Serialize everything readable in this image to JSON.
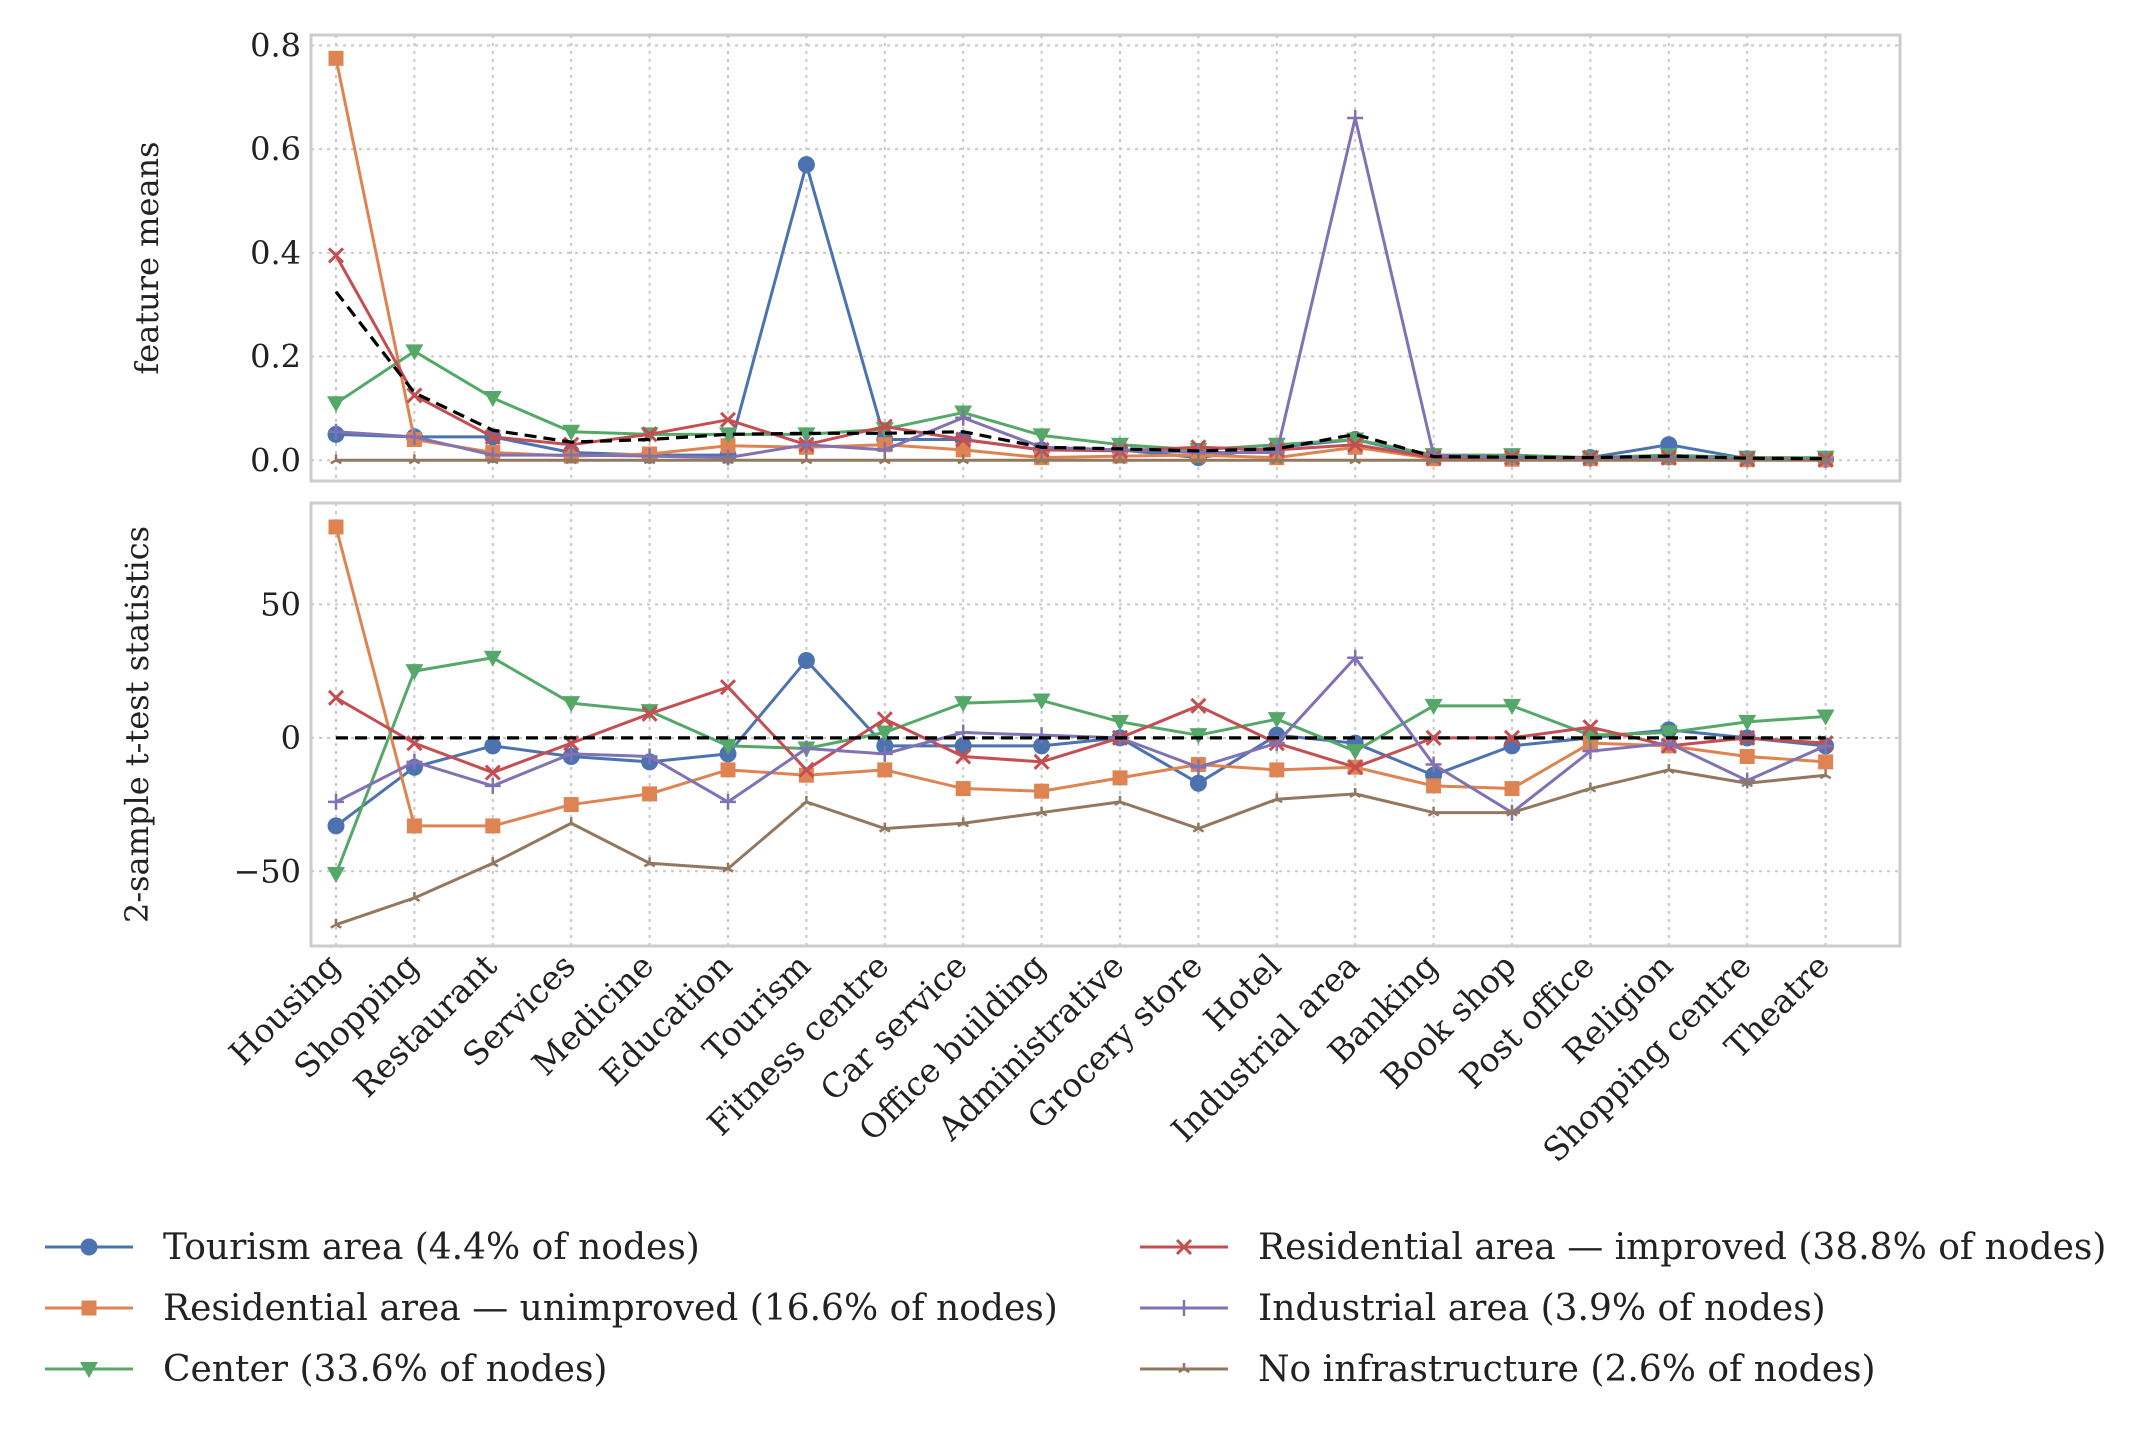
{
  "chart_data": [
    {
      "type": "line",
      "ylabel": "feature means",
      "ylim": [
        -0.04,
        0.82
      ],
      "yticks": [
        0.0,
        0.2,
        0.4,
        0.6,
        0.8
      ],
      "ytick_labels": [
        "0.0",
        "0.2",
        "0.4",
        "0.6",
        "0.8"
      ],
      "grid": true,
      "reference_line": {
        "style": "dashed",
        "color": "#000000",
        "values": [
          0.325,
          0.13,
          0.058,
          0.035,
          0.04,
          0.05,
          0.052,
          0.052,
          0.055,
          0.025,
          0.022,
          0.018,
          0.022,
          0.05,
          0.007,
          0.006,
          0.005,
          0.008,
          0.004,
          0.003
        ]
      },
      "series": [
        {
          "name": "Tourism area (4.4% of nodes)",
          "values": [
            0.05,
            0.045,
            0.045,
            0.015,
            0.01,
            0.01,
            0.57,
            0.04,
            0.04,
            0.02,
            0.02,
            0.005,
            0.025,
            0.04,
            0.005,
            0.005,
            0.005,
            0.03,
            0.003,
            0.002
          ]
        },
        {
          "name": "Residential area — unimproved (16.6% of nodes)",
          "values": [
            0.775,
            0.04,
            0.015,
            0.008,
            0.012,
            0.028,
            0.025,
            0.03,
            0.02,
            0.005,
            0.008,
            0.01,
            0.005,
            0.025,
            0.003,
            0.002,
            0.003,
            0.005,
            0.001,
            0.001
          ]
        },
        {
          "name": "Center (33.6% of nodes)",
          "values": [
            0.11,
            0.21,
            0.12,
            0.055,
            0.05,
            0.05,
            0.05,
            0.06,
            0.092,
            0.048,
            0.03,
            0.02,
            0.03,
            0.04,
            0.01,
            0.01,
            0.005,
            0.01,
            0.005,
            0.005
          ]
        },
        {
          "name": "Residential area — improved (38.8% of nodes)",
          "values": [
            0.395,
            0.125,
            0.045,
            0.03,
            0.05,
            0.078,
            0.03,
            0.065,
            0.04,
            0.02,
            0.018,
            0.025,
            0.02,
            0.03,
            0.005,
            0.005,
            0.005,
            0.005,
            0.002,
            0.001
          ]
        },
        {
          "name": "Industrial area (3.9% of nodes)",
          "values": [
            0.055,
            0.045,
            0.01,
            0.01,
            0.008,
            0.005,
            0.03,
            0.02,
            0.082,
            0.025,
            0.02,
            0.015,
            0.015,
            0.66,
            0.01,
            0.005,
            0.003,
            0.005,
            0.003,
            0.001
          ]
        },
        {
          "name": "No infrastructure (2.6% of nodes)",
          "values": [
            0.0,
            0.0,
            0.0,
            0.0,
            0.0,
            0.0,
            0.0,
            0.0,
            0.0,
            0.0,
            0.0,
            0.0,
            0.0,
            0.0,
            0.0,
            0.0,
            0.0,
            0.0,
            0.0,
            0.0
          ]
        }
      ]
    },
    {
      "type": "line",
      "ylabel": "2-sample t-test statistics",
      "ylim": [
        -78,
        88
      ],
      "yticks": [
        -50,
        0,
        50
      ],
      "ytick_labels": [
        "−50",
        "0",
        "50"
      ],
      "grid": true,
      "reference_line": {
        "style": "dashed",
        "color": "#000000",
        "values": [
          0,
          0,
          0,
          0,
          0,
          0,
          0,
          0,
          0,
          0,
          0,
          0,
          0,
          0,
          0,
          0,
          0,
          0,
          0,
          0
        ]
      },
      "categories": [
        "Housing",
        "Shopping",
        "Restaurant",
        "Services",
        "Medicine",
        "Education",
        "Tourism",
        "Fitness centre",
        "Car service",
        "Office building",
        "Administrative",
        "Grocery store",
        "Hotel",
        "Industrial area",
        "Banking",
        "Book shop",
        "Post office",
        "Religion",
        "Shopping centre",
        "Theatre"
      ],
      "series": [
        {
          "name": "Tourism area (4.4% of nodes)",
          "values": [
            -33,
            -11,
            -3,
            -7,
            -9,
            -6,
            29,
            -3,
            -3,
            -3,
            0,
            -17,
            1,
            -2,
            -14,
            -3,
            0,
            3,
            0,
            -3
          ]
        },
        {
          "name": "Residential area — unimproved (16.6% of nodes)",
          "values": [
            79,
            -33,
            -33,
            -25,
            -21,
            -12,
            -14,
            -12,
            -19,
            -20,
            -15,
            -10,
            -12,
            -11,
            -18,
            -19,
            -2,
            -3,
            -7,
            -9
          ]
        },
        {
          "name": "Center (33.6% of nodes)",
          "values": [
            -51,
            25,
            30,
            13,
            10,
            -3,
            -4,
            2,
            13,
            14,
            6,
            1,
            7,
            -5,
            12,
            12,
            1,
            2,
            6,
            8
          ]
        },
        {
          "name": "Residential area — improved (38.8% of nodes)",
          "values": [
            15,
            -2,
            -13,
            -2,
            9,
            19,
            -12,
            7,
            -7,
            -9,
            0,
            12,
            -2,
            -11,
            0,
            0,
            4,
            -3,
            0,
            -2
          ]
        },
        {
          "name": "Industrial area (3.9% of nodes)",
          "values": [
            -24,
            -9,
            -18,
            -6,
            -7,
            -24,
            -4,
            -6,
            2,
            1,
            0,
            -11,
            -2,
            30,
            -10,
            -28,
            -5,
            -2,
            -16,
            -3
          ]
        },
        {
          "name": "No infrastructure (2.6% of nodes)",
          "values": [
            -70,
            -60,
            -47,
            -32,
            -47,
            -49,
            -24,
            -34,
            -32,
            -28,
            -24,
            -34,
            -23,
            -21,
            -28,
            -28,
            -19,
            -12,
            -17,
            -14
          ]
        }
      ]
    }
  ],
  "legend": {
    "placement": "bottom",
    "entries": [
      {
        "label": "Tourism area (4.4% of nodes)",
        "color": "#4C72B0",
        "marker": "circle"
      },
      {
        "label": "Residential area — unimproved (16.6% of nodes)",
        "color": "#DD8452",
        "marker": "square"
      },
      {
        "label": "Center (33.6% of nodes)",
        "color": "#55A868",
        "marker": "triangle-down"
      },
      {
        "label": "Residential area — improved (38.8% of nodes)",
        "color": "#C44E52",
        "marker": "x"
      },
      {
        "label": "Industrial area (3.9% of nodes)",
        "color": "#8172B3",
        "marker": "plus"
      },
      {
        "label": "No infrastructure (2.6% of nodes)",
        "color": "#937860",
        "marker": "tri-star"
      }
    ]
  }
}
